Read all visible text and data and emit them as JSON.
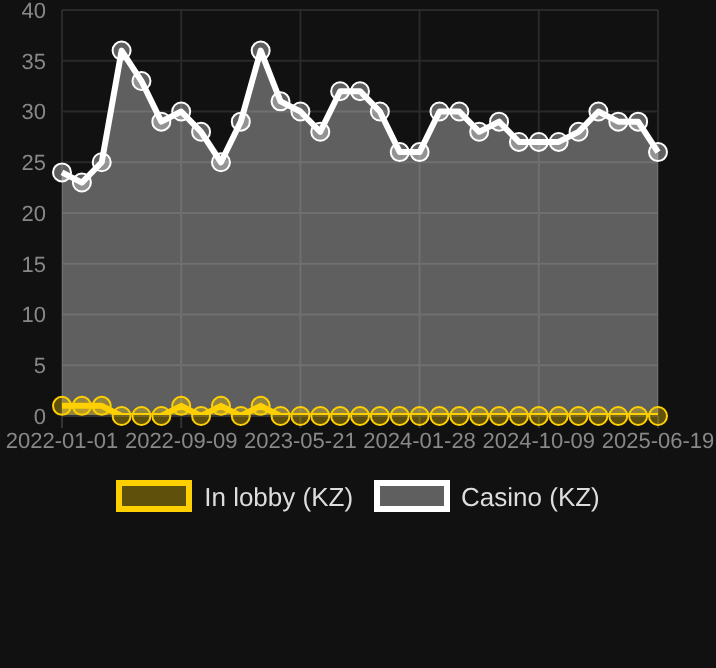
{
  "chart_data": {
    "type": "area",
    "categories": [
      "2022-01-01",
      null,
      null,
      null,
      null,
      null,
      "2022-09-09",
      null,
      null,
      null,
      null,
      null,
      "2023-05-21",
      null,
      null,
      null,
      null,
      null,
      "2024-01-28",
      null,
      null,
      null,
      null,
      null,
      "2024-10-09",
      null,
      null,
      null,
      null,
      null,
      "2025-06-19"
    ],
    "series": [
      {
        "name": "In lobby (KZ)",
        "color": "#ffd000",
        "values": [
          1,
          1,
          1,
          0,
          0,
          0,
          1,
          0,
          1,
          0,
          1,
          0,
          0,
          0,
          0,
          0,
          0,
          0,
          0,
          0,
          0,
          0,
          0,
          0,
          0,
          0,
          0,
          0,
          0,
          0,
          0
        ]
      },
      {
        "name": "Casino (KZ)",
        "color": "#ffffff",
        "values": [
          24,
          23,
          25,
          36,
          33,
          29,
          30,
          28,
          25,
          29,
          36,
          31,
          30,
          28,
          32,
          32,
          30,
          26,
          26,
          30,
          30,
          28,
          29,
          27,
          27,
          27,
          28,
          30,
          29,
          29,
          26
        ]
      }
    ],
    "ylim": [
      0,
      40
    ],
    "yticks": [
      0,
      5,
      10,
      15,
      20,
      25,
      30,
      35,
      40
    ],
    "grid": true,
    "legend": "bottom",
    "marker": "circle"
  }
}
